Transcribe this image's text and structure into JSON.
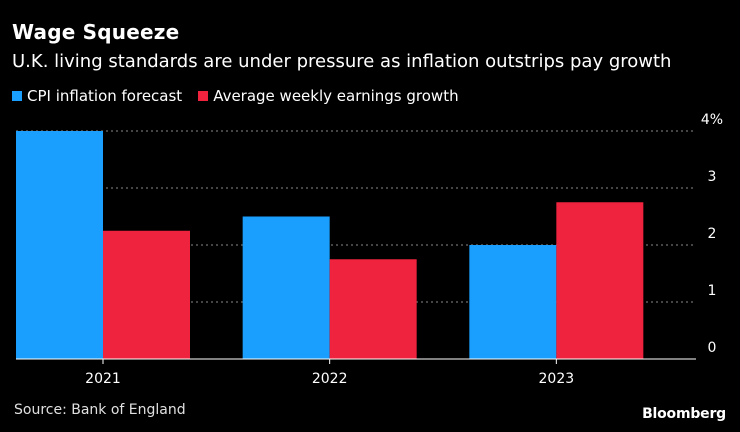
{
  "header": {
    "title": "Wage Squeeze",
    "subtitle": "U.K. living standards are under pressure as inflation outstrips pay growth"
  },
  "footer": {
    "source": "Source: Bank of England",
    "brand": "Bloomberg"
  },
  "chart_data": {
    "type": "bar",
    "title": "Wage Squeeze",
    "subtitle": "U.K. living standards are under pressure as inflation outstrips pay growth",
    "categories": [
      "2021",
      "2022",
      "2023"
    ],
    "series": [
      {
        "name": "CPI inflation forecast",
        "color": "#1a9fff",
        "values": [
          4.0,
          2.5,
          2.0
        ]
      },
      {
        "name": "Average weekly earnings growth",
        "color": "#f0233e",
        "values": [
          2.25,
          1.75,
          2.75
        ]
      }
    ],
    "ylim": [
      0,
      4
    ],
    "yticks": [
      "0",
      "1",
      "2",
      "3",
      "4%"
    ],
    "xlabel": "",
    "ylabel": "",
    "grid": true,
    "legend": "top-left"
  }
}
